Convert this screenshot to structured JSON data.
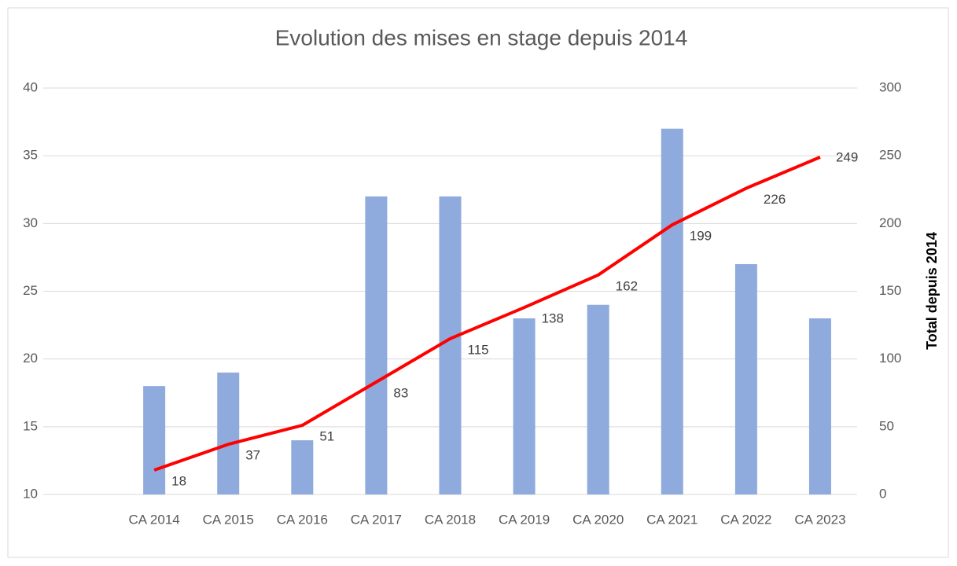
{
  "chart_data": {
    "type": "bar",
    "title": "Evolution des mises en stage depuis 2014",
    "categories": [
      null,
      "CA 2014",
      "CA 2015",
      "CA 2016",
      "CA 2017",
      "CA 2018",
      "CA 2019",
      "CA 2020",
      "CA 2021",
      "CA 2022",
      "CA 2023"
    ],
    "series": [
      {
        "type": "bar",
        "color": "#8faadc",
        "values": [
          null,
          18,
          19,
          14,
          32,
          32,
          23,
          24,
          37,
          27,
          23
        ]
      },
      {
        "type": "line",
        "axis": "y2",
        "color": "#ff0000",
        "values": [
          null,
          18,
          37,
          51,
          83,
          115,
          138,
          162,
          199,
          226,
          249
        ]
      }
    ],
    "ylim": [
      10,
      40
    ],
    "yticks": [
      10,
      15,
      20,
      25,
      30,
      35,
      40
    ],
    "y2lim": [
      0,
      300
    ],
    "y2ticks": [
      0,
      50,
      100,
      150,
      200,
      250,
      300
    ],
    "y2label": "Total depuis 2014",
    "grid": true
  }
}
